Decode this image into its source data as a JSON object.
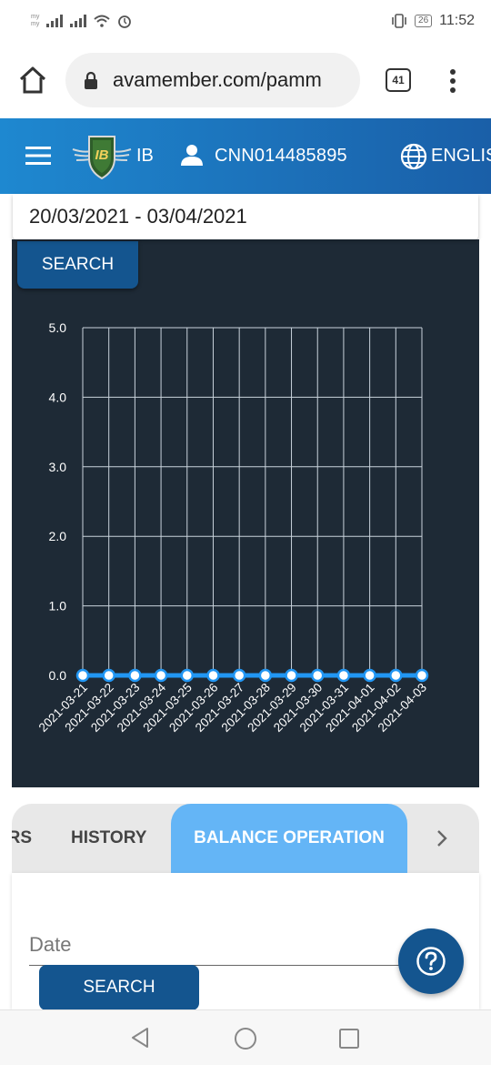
{
  "status_bar": {
    "carrier_top": "my",
    "carrier_bottom": "my",
    "battery": "26",
    "time": "11:52"
  },
  "browser": {
    "url": "avamember.com/pamm",
    "tab_count": "41"
  },
  "header": {
    "logo_text": "IB",
    "ib_label": "IB",
    "user_id": "CNN014485895",
    "language": "ENGLIS"
  },
  "filter": {
    "date_range": "20/03/2021 - 03/04/2021",
    "search_label": "SEARCH"
  },
  "chart_data": {
    "type": "line",
    "x": [
      "2021-03-21",
      "2021-03-22",
      "2021-03-23",
      "2021-03-24",
      "2021-03-25",
      "2021-03-26",
      "2021-03-27",
      "2021-03-28",
      "2021-03-29",
      "2021-03-30",
      "2021-03-31",
      "2021-04-01",
      "2021-04-02",
      "2021-04-03"
    ],
    "series": [
      {
        "values": [
          0,
          0,
          0,
          0,
          0,
          0,
          0,
          0,
          0,
          0,
          0,
          0,
          0,
          0
        ]
      }
    ],
    "yticks": [
      "5.0",
      "4.0",
      "3.0",
      "2.0",
      "1.0",
      "0.0"
    ],
    "ylim": [
      0,
      5
    ],
    "grid": true,
    "colors": {
      "line": "#2196f3",
      "grid": "#c9d3dc",
      "text": "#ffffff",
      "background": "#1e2a36"
    }
  },
  "tabs": {
    "prev_partial": "RS",
    "history": "HISTORY",
    "balance_operation": "BALANCE OPERATION",
    "active": "BALANCE OPERATION"
  },
  "form": {
    "date_placeholder": "Date",
    "search_label": "SEARCH"
  },
  "colors": {
    "header": "#1a72bf",
    "button": "#14558f",
    "active_tab": "#64b5f6"
  }
}
